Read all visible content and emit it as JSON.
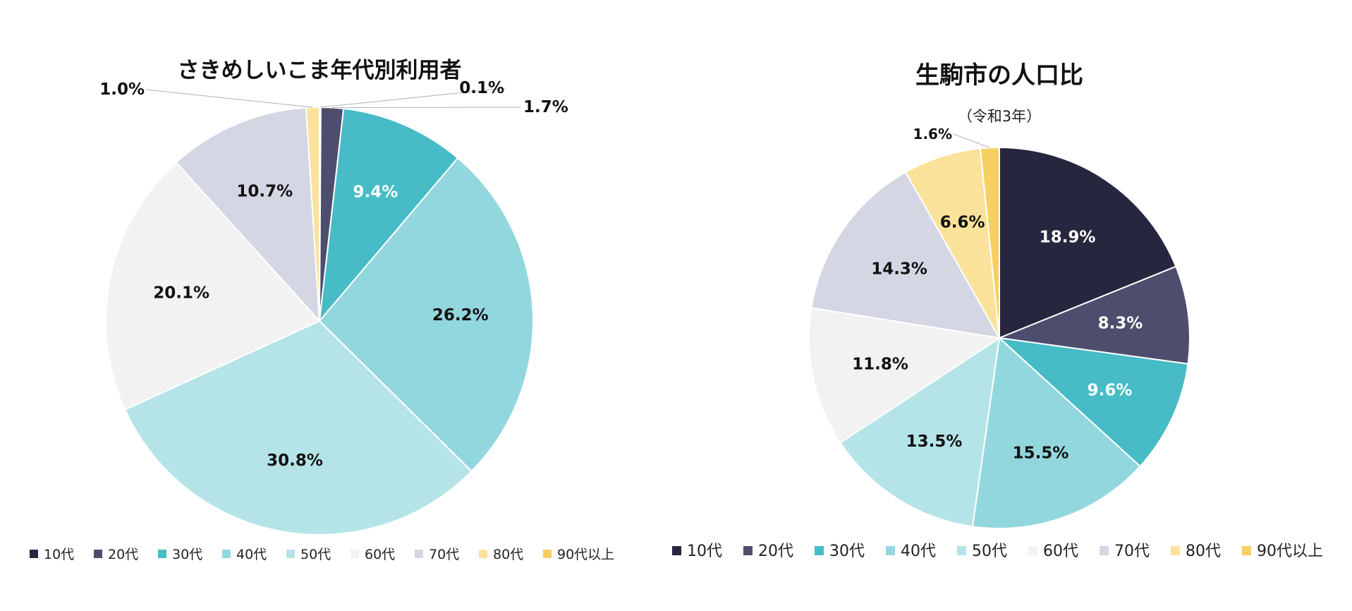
{
  "colors": {
    "10代": "#26263f",
    "20代": "#4d4e6e",
    "30代": "#47bbc6",
    "40代": "#93d7de",
    "50代": "#b5e4e8",
    "60代": "#f2f2f2",
    "70代": "#d4d7e3",
    "80代": "#fae29a",
    "90代以上": "#f7d063"
  },
  "chart_data": [
    {
      "type": "pie",
      "title": "さきめしいこま年代別利用者",
      "categories": [
        "10代",
        "20代",
        "30代",
        "40代",
        "50代",
        "60代",
        "70代",
        "80代",
        "90代以上"
      ],
      "values": [
        0.1,
        1.7,
        9.4,
        26.2,
        30.8,
        20.1,
        10.7,
        1.0,
        0.0
      ],
      "labels": [
        "0.1%",
        "1.7%",
        "9.4%",
        "26.2%",
        "30.8%",
        "20.1%",
        "10.7%",
        "1.0%",
        ""
      ],
      "legend": "bottom"
    },
    {
      "type": "pie",
      "title": "生駒市の人口比",
      "subtitle": "（令和3年）",
      "categories": [
        "10代",
        "20代",
        "30代",
        "40代",
        "50代",
        "60代",
        "70代",
        "80代",
        "90代以上"
      ],
      "values": [
        18.9,
        8.3,
        9.6,
        15.5,
        13.5,
        11.8,
        14.3,
        6.6,
        1.6
      ],
      "labels": [
        "18.9%",
        "8.3%",
        "9.6%",
        "15.5%",
        "13.5%",
        "11.8%",
        "14.3%",
        "6.6%",
        "1.6%"
      ],
      "legend": "bottom"
    }
  ]
}
